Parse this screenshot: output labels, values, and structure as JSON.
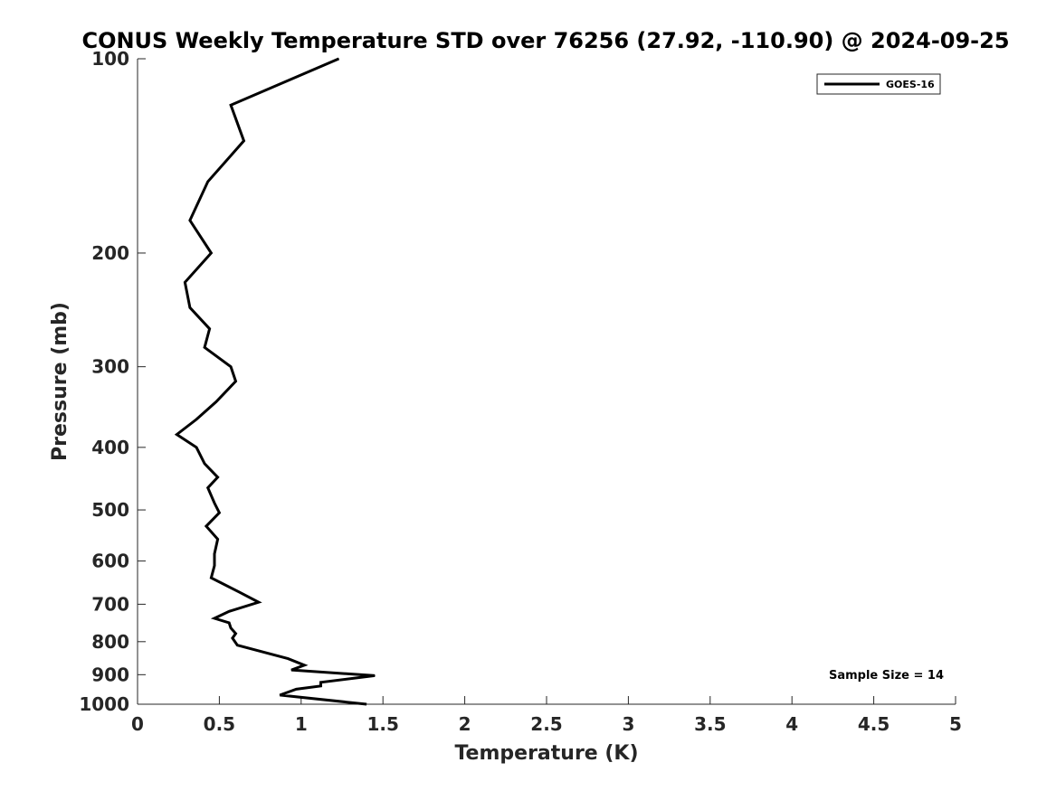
{
  "chart_data": {
    "type": "line",
    "title": "CONUS Weekly Temperature STD over 76256 (27.92, -110.90) @ 2024-09-25",
    "xlabel": "Temperature (K)",
    "ylabel": "Pressure (mb)",
    "xlim": [
      0,
      5
    ],
    "ylim": [
      100,
      1000
    ],
    "y_scale": "log",
    "y_reversed": true,
    "x_ticks": [
      "0",
      "0.5",
      "1",
      "1.5",
      "2",
      "2.5",
      "3",
      "3.5",
      "4",
      "4.5",
      "5"
    ],
    "y_ticks": [
      "100",
      "200",
      "300",
      "400",
      "500",
      "600",
      "700",
      "800",
      "900",
      "1000"
    ],
    "grid": false,
    "legend": {
      "position": "top-right",
      "entries": [
        "GOES-16"
      ]
    },
    "annotation": "Sample Size = 14",
    "series": [
      {
        "name": "GOES-16",
        "color": "#000000",
        "points": [
          [
            1.23,
            100
          ],
          [
            0.57,
            118
          ],
          [
            0.65,
            134
          ],
          [
            0.43,
            155
          ],
          [
            0.32,
            178
          ],
          [
            0.45,
            200
          ],
          [
            0.29,
            222
          ],
          [
            0.32,
            243
          ],
          [
            0.44,
            262
          ],
          [
            0.41,
            280
          ],
          [
            0.57,
            300
          ],
          [
            0.6,
            316
          ],
          [
            0.48,
            340
          ],
          [
            0.36,
            362
          ],
          [
            0.24,
            382
          ],
          [
            0.36,
            400
          ],
          [
            0.41,
            424
          ],
          [
            0.49,
            445
          ],
          [
            0.43,
            462
          ],
          [
            0.47,
            488
          ],
          [
            0.5,
            505
          ],
          [
            0.42,
            530
          ],
          [
            0.49,
            555
          ],
          [
            0.47,
            585
          ],
          [
            0.47,
            610
          ],
          [
            0.45,
            637
          ],
          [
            0.62,
            670
          ],
          [
            0.74,
            695
          ],
          [
            0.56,
            718
          ],
          [
            0.47,
            736
          ],
          [
            0.56,
            748
          ],
          [
            0.57,
            762
          ],
          [
            0.6,
            777
          ],
          [
            0.58,
            790
          ],
          [
            0.61,
            810
          ],
          [
            0.92,
            850
          ],
          [
            1.02,
            870
          ],
          [
            0.94,
            885
          ],
          [
            1.45,
            903
          ],
          [
            1.12,
            925
          ],
          [
            1.12,
            937
          ],
          [
            0.97,
            948
          ],
          [
            0.87,
            968
          ],
          [
            1.4,
            1000
          ]
        ]
      }
    ]
  }
}
